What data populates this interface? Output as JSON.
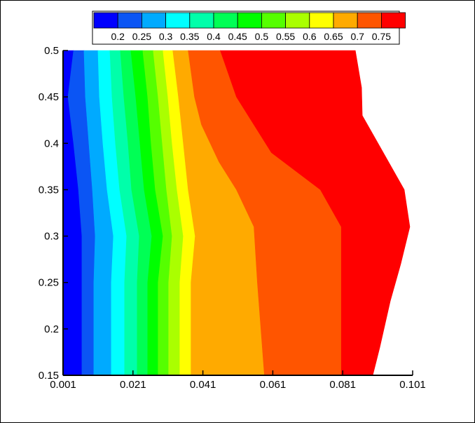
{
  "chart_data": {
    "type": "heatmap",
    "title": "",
    "xlabel": "",
    "ylabel": "",
    "xlim": [
      0.001,
      0.101
    ],
    "ylim": [
      0.15,
      0.5
    ],
    "x_ticks": [
      "0.001",
      "0.021",
      "0.041",
      "0.061",
      "0.081",
      "0.101"
    ],
    "y_ticks": [
      "0.15",
      "0.2",
      "0.25",
      "0.3",
      "0.35",
      "0.4",
      "0.45",
      "0.5"
    ],
    "legend": {
      "position": "top",
      "labels": [
        "0.2",
        "0.25",
        "0.3",
        "0.35",
        "0.4",
        "0.45",
        "0.5",
        "0.55",
        "0.6",
        "0.65",
        "0.7",
        "0.75"
      ],
      "colors": [
        "#0000ff",
        "#0b55f4",
        "#00aaff",
        "#00ffff",
        "#00ffaa",
        "#00ff55",
        "#00ff00",
        "#55ff00",
        "#aaff00",
        "#ffff00",
        "#ffaa00",
        "#ff5500",
        "#ff0000"
      ]
    },
    "contour_boundaries": [
      {
        "level": "0.2",
        "points": [
          [
            0.004,
            0.5
          ],
          [
            0.0024,
            0.45
          ],
          [
            0.004,
            0.4
          ],
          [
            0.0054,
            0.35
          ],
          [
            0.0064,
            0.3
          ],
          [
            0.0064,
            0.25
          ],
          [
            0.0064,
            0.2
          ],
          [
            0.0064,
            0.15
          ]
        ]
      },
      {
        "level": "0.25",
        "points": [
          [
            0.007,
            0.5
          ],
          [
            0.0074,
            0.45
          ],
          [
            0.0084,
            0.4
          ],
          [
            0.0094,
            0.35
          ],
          [
            0.0102,
            0.3
          ],
          [
            0.0098,
            0.25
          ],
          [
            0.0098,
            0.2
          ],
          [
            0.0098,
            0.15
          ]
        ]
      },
      {
        "level": "0.3",
        "points": [
          [
            0.011,
            0.5
          ],
          [
            0.0114,
            0.45
          ],
          [
            0.0124,
            0.4
          ],
          [
            0.0136,
            0.35
          ],
          [
            0.0154,
            0.3
          ],
          [
            0.0148,
            0.25
          ],
          [
            0.0148,
            0.2
          ],
          [
            0.0148,
            0.15
          ]
        ]
      },
      {
        "level": "0.35",
        "points": [
          [
            0.0144,
            0.5
          ],
          [
            0.015,
            0.45
          ],
          [
            0.016,
            0.4
          ],
          [
            0.0172,
            0.35
          ],
          [
            0.0192,
            0.3
          ],
          [
            0.0186,
            0.25
          ],
          [
            0.0186,
            0.2
          ],
          [
            0.0186,
            0.15
          ]
        ]
      },
      {
        "level": "0.4",
        "points": [
          [
            0.0174,
            0.5
          ],
          [
            0.0184,
            0.45
          ],
          [
            0.0196,
            0.4
          ],
          [
            0.0206,
            0.35
          ],
          [
            0.0228,
            0.3
          ],
          [
            0.0222,
            0.25
          ],
          [
            0.0222,
            0.2
          ],
          [
            0.0222,
            0.15
          ]
        ]
      },
      {
        "level": "0.45",
        "points": [
          [
            0.0204,
            0.5
          ],
          [
            0.0218,
            0.45
          ],
          [
            0.023,
            0.4
          ],
          [
            0.0242,
            0.35
          ],
          [
            0.0264,
            0.3
          ],
          [
            0.0252,
            0.25
          ],
          [
            0.0252,
            0.2
          ],
          [
            0.0252,
            0.15
          ]
        ]
      },
      {
        "level": "0.5",
        "points": [
          [
            0.0238,
            0.5
          ],
          [
            0.0252,
            0.45
          ],
          [
            0.0262,
            0.4
          ],
          [
            0.0274,
            0.35
          ],
          [
            0.0296,
            0.3
          ],
          [
            0.0282,
            0.25
          ],
          [
            0.0282,
            0.2
          ],
          [
            0.0282,
            0.15
          ]
        ]
      },
      {
        "level": "0.55",
        "points": [
          [
            0.0268,
            0.5
          ],
          [
            0.0282,
            0.45
          ],
          [
            0.0294,
            0.4
          ],
          [
            0.0306,
            0.35
          ],
          [
            0.0322,
            0.3
          ],
          [
            0.0312,
            0.25
          ],
          [
            0.0312,
            0.2
          ],
          [
            0.0312,
            0.15
          ]
        ]
      },
      {
        "level": "0.6",
        "points": [
          [
            0.0296,
            0.5
          ],
          [
            0.031,
            0.45
          ],
          [
            0.0322,
            0.4
          ],
          [
            0.0336,
            0.35
          ],
          [
            0.0354,
            0.3
          ],
          [
            0.0344,
            0.25
          ],
          [
            0.0344,
            0.2
          ],
          [
            0.0344,
            0.15
          ]
        ]
      },
      {
        "level": "0.65",
        "points": [
          [
            0.0324,
            0.5
          ],
          [
            0.034,
            0.45
          ],
          [
            0.0354,
            0.4
          ],
          [
            0.0368,
            0.35
          ],
          [
            0.0388,
            0.3
          ],
          [
            0.0376,
            0.25
          ],
          [
            0.0376,
            0.2
          ],
          [
            0.0376,
            0.15
          ]
        ]
      },
      {
        "level": "0.7",
        "points": [
          [
            0.0368,
            0.5
          ],
          [
            0.0386,
            0.45
          ],
          [
            0.0406,
            0.42
          ],
          [
            0.0456,
            0.38
          ],
          [
            0.0506,
            0.35
          ],
          [
            0.0556,
            0.31
          ],
          [
            0.0566,
            0.25
          ],
          [
            0.0576,
            0.2
          ],
          [
            0.0586,
            0.15
          ]
        ]
      },
      {
        "level": "0.75",
        "points": [
          [
            0.046,
            0.5
          ],
          [
            0.0506,
            0.45
          ],
          [
            0.0606,
            0.39
          ],
          [
            0.0746,
            0.35
          ],
          [
            0.0806,
            0.31
          ],
          [
            0.0806,
            0.25
          ],
          [
            0.0806,
            0.2
          ],
          [
            0.0806,
            0.15
          ]
        ]
      },
      {
        "level": "edge",
        "points": [
          [
            0.0846,
            0.5
          ],
          [
            0.0864,
            0.46
          ],
          [
            0.0866,
            0.43
          ],
          [
            0.0926,
            0.39
          ],
          [
            0.0986,
            0.35
          ],
          [
            0.1002,
            0.31
          ],
          [
            0.0976,
            0.27
          ],
          [
            0.0946,
            0.23
          ],
          [
            0.0916,
            0.18
          ],
          [
            0.0896,
            0.15
          ]
        ]
      }
    ]
  }
}
